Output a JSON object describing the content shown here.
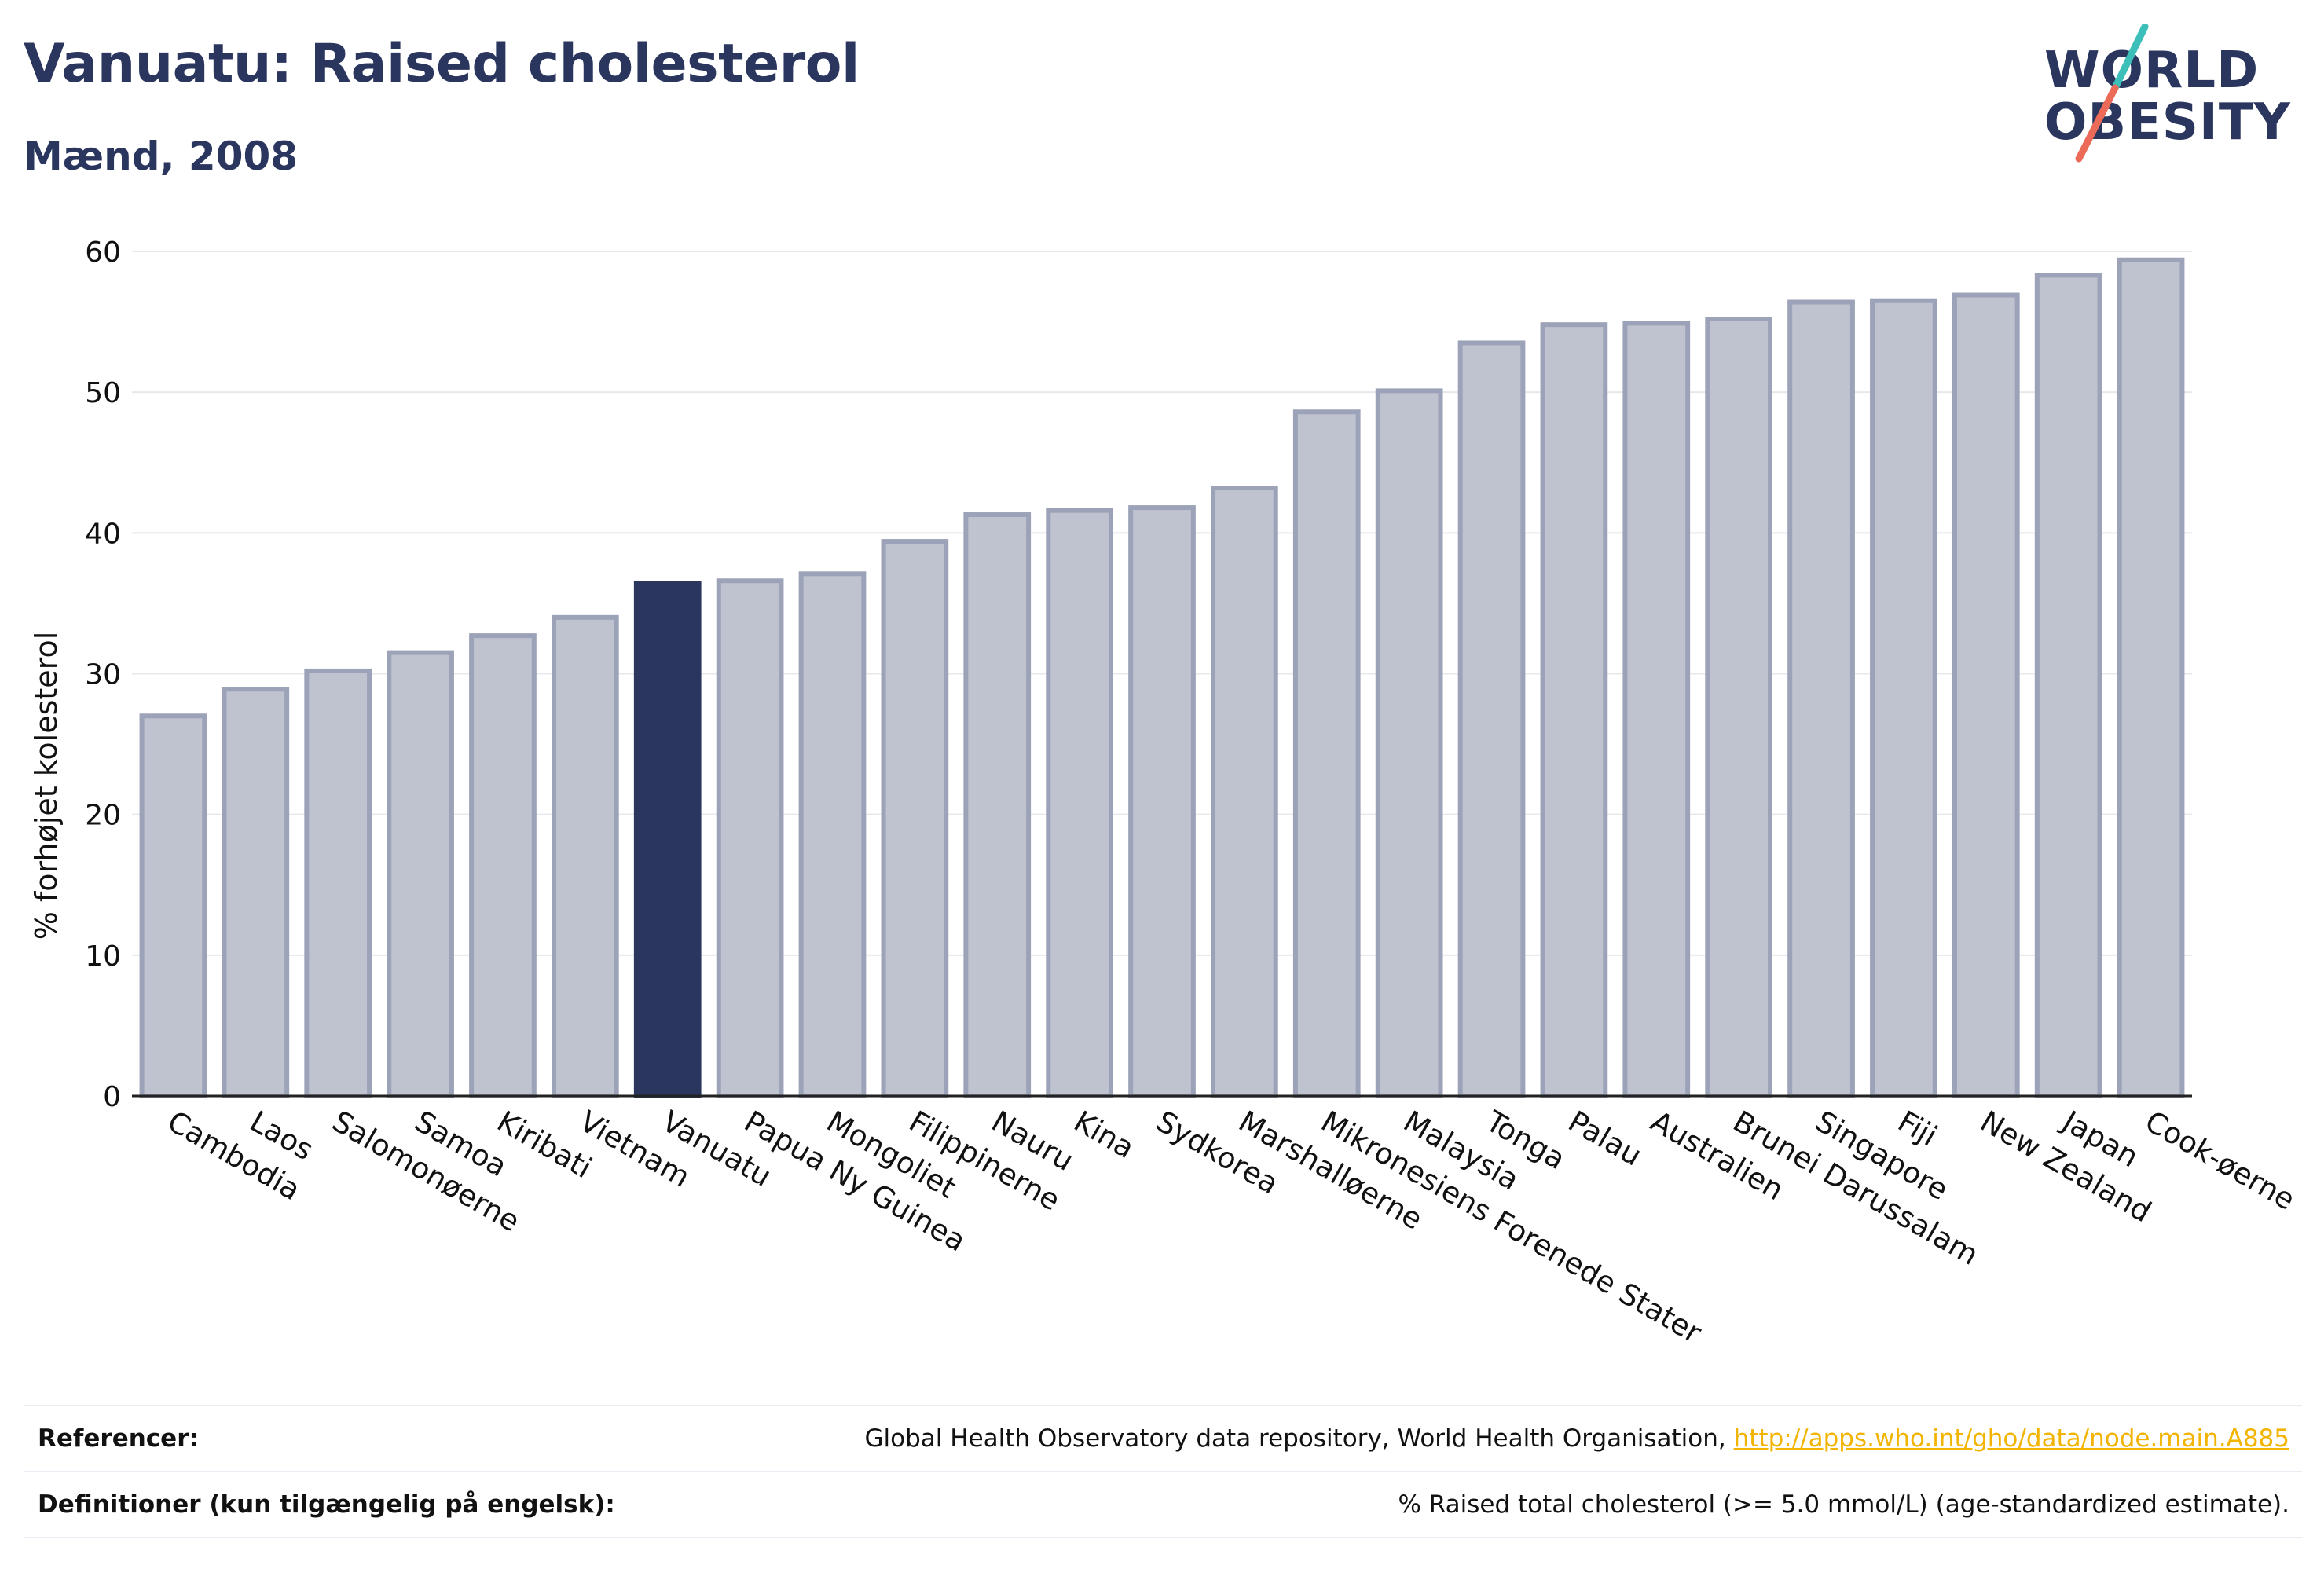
{
  "header": {
    "title": "Vanuatu: Raised cholesterol",
    "subtitle": "Mænd, 2008"
  },
  "logo": {
    "line1": "WORLD",
    "line2": "OBESITY"
  },
  "colors": {
    "highlight": "#2b365f",
    "bar_fill": "#bfc3d0",
    "bar_stroke": "#9ca3b8",
    "grid": "#e6e8ee",
    "title": "#2b365f",
    "link": "#f2b400",
    "logo_teal": "#3bbfb8",
    "logo_coral": "#ec6a58"
  },
  "chart_data": {
    "type": "bar",
    "ylabel": "% forhøjet kolesterol",
    "xlabel": "",
    "ylim": [
      0,
      60
    ],
    "yticks": [
      0,
      10,
      20,
      30,
      40,
      50,
      60
    ],
    "grid": true,
    "highlight": "Vanuatu",
    "categories": [
      "Cambodia",
      "Laos",
      "Salomonøerne",
      "Samoa",
      "Kiribati",
      "Vietnam",
      "Vanuatu",
      "Papua Ny Guinea",
      "Mongoliet",
      "Filippinerne",
      "Nauru",
      "Kina",
      "Sydkorea",
      "Marshalløerne",
      "Mikronesiens Forenede Stater",
      "Malaysia",
      "Tonga",
      "Palau",
      "Australien",
      "Brunei Darussalam",
      "Singapore",
      "Fiji",
      "New Zealand",
      "Japan",
      "Cook-øerne"
    ],
    "values": [
      27.0,
      28.9,
      30.2,
      31.5,
      32.7,
      34.0,
      36.4,
      36.6,
      37.1,
      39.4,
      41.3,
      41.6,
      41.8,
      43.2,
      48.6,
      50.1,
      53.5,
      54.8,
      54.9,
      55.2,
      56.4,
      56.5,
      56.9,
      58.3,
      59.4
    ]
  },
  "references": {
    "ref_label": "Referencer:",
    "ref_text": "Global Health Observatory data repository, World Health Organisation, ",
    "ref_link": "http://apps.who.int/gho/data/node.main.A885",
    "def_label": "Definitioner (kun tilgængelig på engelsk):",
    "def_text": "% Raised total cholesterol (>= 5.0 mmol/L) (age-standardized estimate)."
  }
}
